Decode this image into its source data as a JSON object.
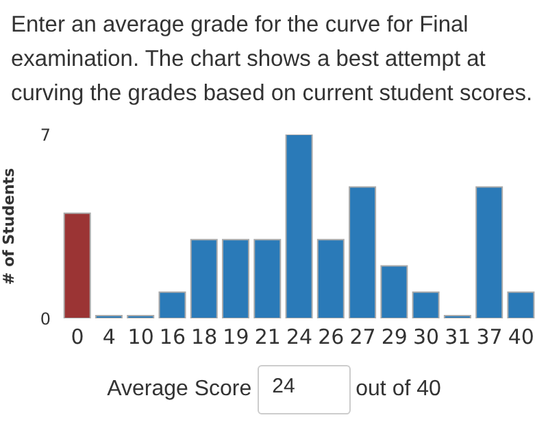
{
  "chart_data": {
    "type": "bar",
    "title": "Enter an average grade for the curve for Final examination. The chart shows a best attempt at curving the grades based on current student scores.",
    "ylabel": "# of Students",
    "categories": [
      "0",
      "4",
      "10",
      "16",
      "18",
      "19",
      "21",
      "24",
      "26",
      "27",
      "29",
      "30",
      "31",
      "37",
      "40"
    ],
    "values": [
      4,
      0,
      0,
      1,
      3,
      3,
      3,
      7,
      3,
      5,
      2,
      1,
      0,
      5,
      1
    ],
    "colors": [
      "#9b3434",
      "#2a7ab8",
      "#2a7ab8",
      "#2a7ab8",
      "#2a7ab8",
      "#2a7ab8",
      "#2a7ab8",
      "#2a7ab8",
      "#2a7ab8",
      "#2a7ab8",
      "#2a7ab8",
      "#2a7ab8",
      "#2a7ab8",
      "#2a7ab8",
      "#2a7ab8"
    ],
    "ylim": [
      0,
      7
    ],
    "yticks": [
      0,
      7
    ],
    "grid": false,
    "annotations": [
      "Average Score",
      "24",
      "out of 40"
    ]
  }
}
